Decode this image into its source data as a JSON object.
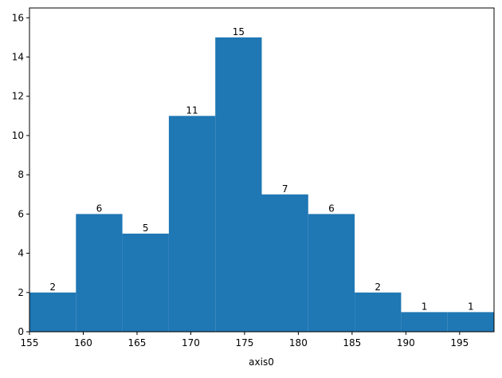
{
  "chart_data": {
    "type": "histogram",
    "x_label": "axis0",
    "bins": [
      155,
      159.32,
      163.64,
      167.96,
      172.28,
      176.6,
      180.92,
      185.24,
      189.56,
      193.88,
      198.2
    ],
    "values": [
      2,
      6,
      5,
      11,
      15,
      7,
      6,
      2,
      1,
      1
    ],
    "color": "#1f77b4",
    "xlim": [
      155,
      198.2
    ],
    "xticks": [
      155,
      160,
      165,
      170,
      175,
      180,
      185,
      190,
      195
    ],
    "ylim": [
      0,
      16.5
    ],
    "yticks": [
      0,
      2,
      4,
      6,
      8,
      10,
      12,
      14,
      16
    ]
  }
}
